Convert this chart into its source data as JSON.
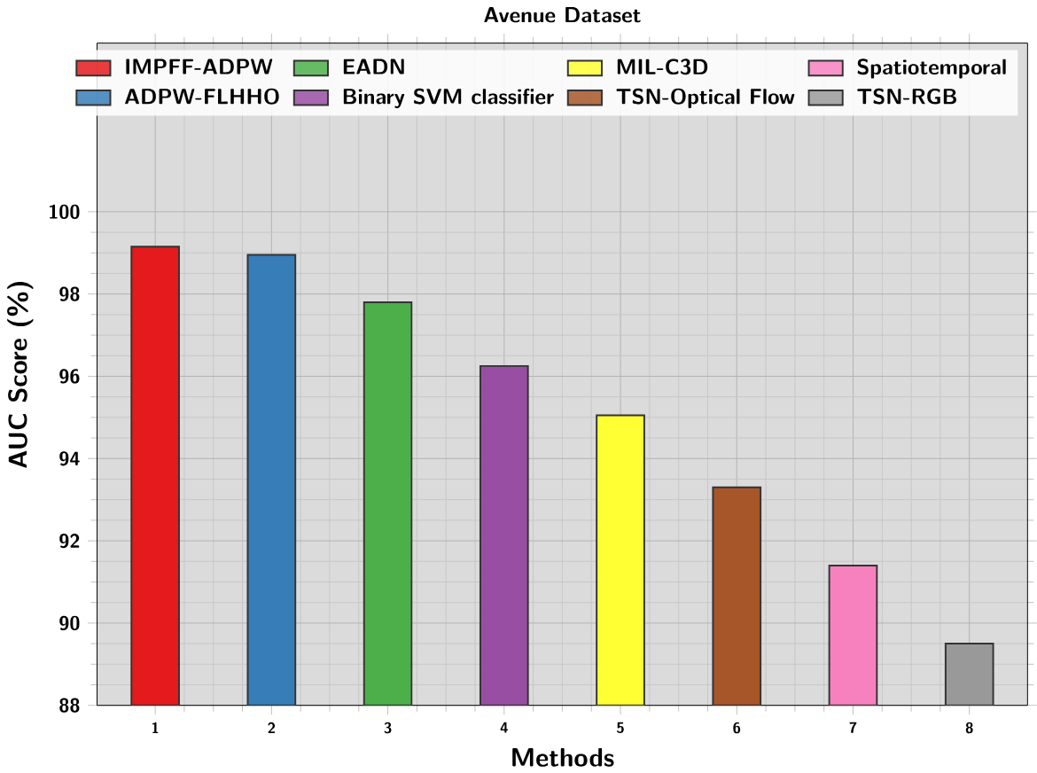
{
  "chart_data": {
    "type": "bar",
    "title": "Avenue Dataset",
    "xlabel": "Methods",
    "ylabel": "AUC Score (%)",
    "categories": [
      "1",
      "2",
      "3",
      "4",
      "5",
      "6",
      "7",
      "8"
    ],
    "series": [
      {
        "name": "IMPFF-ADPW",
        "color": "#e41a1c",
        "values": [
          99.15,
          null,
          null,
          null,
          null,
          null,
          null,
          null
        ]
      },
      {
        "name": "ADPW-FLHHO",
        "color": "#377eb8",
        "values": [
          null,
          98.95,
          null,
          null,
          null,
          null,
          null,
          null
        ]
      },
      {
        "name": "EADN",
        "color": "#4daf4a",
        "values": [
          null,
          null,
          97.8,
          null,
          null,
          null,
          null,
          null
        ]
      },
      {
        "name": "Binary SVM classifier",
        "color": "#984ea3",
        "values": [
          null,
          null,
          null,
          96.25,
          null,
          null,
          null,
          null
        ]
      },
      {
        "name": "MIL-C3D",
        "color": "#ffff33",
        "values": [
          null,
          null,
          null,
          null,
          95.05,
          null,
          null,
          null
        ]
      },
      {
        "name": "TSN-Optical Flow",
        "color": "#a65628",
        "values": [
          null,
          null,
          null,
          null,
          null,
          93.3,
          null,
          null
        ]
      },
      {
        "name": "Spatiotemporal",
        "color": "#f781bf",
        "values": [
          null,
          null,
          null,
          null,
          null,
          null,
          91.4,
          null
        ]
      },
      {
        "name": "TSN-RGB",
        "color": "#999999",
        "values": [
          null,
          null,
          null,
          null,
          null,
          null,
          null,
          89.5
        ]
      }
    ],
    "ylim": [
      88,
      104.1
    ],
    "yticks": [
      88,
      90,
      92,
      94,
      96,
      98,
      100
    ],
    "grid": true,
    "legend": "top right"
  }
}
